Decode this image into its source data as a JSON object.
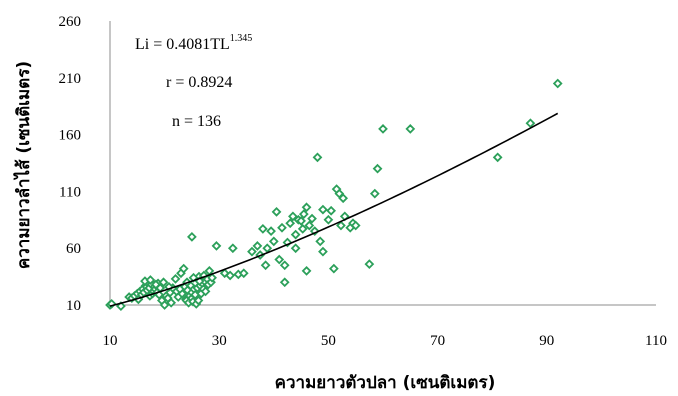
{
  "chart_data": {
    "type": "scatter",
    "title": "",
    "xlabel": "ความยาวตัวปลา (เซนติเมตร)",
    "ylabel": "ความยาวลำไส้ (เซนติเมตร)",
    "xlim": [
      10,
      110
    ],
    "ylim": [
      10,
      260
    ],
    "x_ticks": [
      10,
      30,
      50,
      70,
      90,
      110
    ],
    "y_ticks": [
      10,
      60,
      110,
      160,
      210,
      260
    ],
    "x_tick_labels": [
      "10",
      "30",
      "50",
      "70",
      "90",
      "110"
    ],
    "y_tick_labels": [
      "10",
      "60",
      "110",
      "160",
      "210",
      "260"
    ],
    "grid": false,
    "marker_color": "#2ca05a",
    "trendline_color": "#000000",
    "annotations": {
      "equation_main": "Li = 0.4081TL",
      "equation_exponent": "1.345",
      "r_text": "r = 0.8924",
      "n_text": "n = 136"
    },
    "trendline": {
      "type": "power",
      "a": 0.4081,
      "b": 1.345,
      "x_range": [
        10,
        92
      ]
    },
    "series": [
      {
        "points": [
          [
            10,
            10
          ],
          [
            10.3,
            11
          ],
          [
            12,
            9
          ],
          [
            13.5,
            17
          ],
          [
            14,
            16
          ],
          [
            14.5,
            18
          ],
          [
            15,
            20
          ],
          [
            15.2,
            15
          ],
          [
            15.5,
            22
          ],
          [
            15.8,
            19
          ],
          [
            16,
            24
          ],
          [
            16.2,
            21
          ],
          [
            16.5,
            27
          ],
          [
            16.7,
            26
          ],
          [
            16.8,
            23
          ],
          [
            17,
            29
          ],
          [
            17.2,
            25
          ],
          [
            17.3,
            18
          ],
          [
            17.5,
            30
          ],
          [
            17.6,
            28
          ],
          [
            17.8,
            20
          ],
          [
            18,
            22
          ],
          [
            18.1,
            26
          ],
          [
            18.3,
            24
          ],
          [
            18.5,
            27
          ],
          [
            18.6,
            21
          ],
          [
            18.8,
            29
          ],
          [
            19,
            19
          ],
          [
            19.2,
            25
          ],
          [
            19.5,
            14
          ],
          [
            19.8,
            30
          ],
          [
            20,
            10
          ],
          [
            20.3,
            18
          ],
          [
            20.6,
            16
          ],
          [
            21,
            21
          ],
          [
            21.2,
            12
          ],
          [
            21.5,
            25
          ],
          [
            22,
            33
          ],
          [
            22.2,
            22
          ],
          [
            22.5,
            17
          ],
          [
            23,
            38
          ],
          [
            23.2,
            20
          ],
          [
            23.5,
            42
          ],
          [
            23.7,
            26
          ],
          [
            23.9,
            15
          ],
          [
            24,
            14
          ],
          [
            24.2,
            23
          ],
          [
            24.4,
            12
          ],
          [
            24.6,
            18
          ],
          [
            24.8,
            27
          ],
          [
            25,
            16
          ],
          [
            25,
            21
          ],
          [
            25.2,
            13
          ],
          [
            25.4,
            24
          ],
          [
            25.6,
            19
          ],
          [
            25.8,
            11
          ],
          [
            26,
            25
          ],
          [
            26.2,
            14
          ],
          [
            26.3,
            35
          ],
          [
            26.5,
            27
          ],
          [
            26.7,
            20
          ],
          [
            26.9,
            29
          ],
          [
            27.1,
            24
          ],
          [
            27.3,
            31
          ],
          [
            27.5,
            22
          ],
          [
            27.8,
            33
          ],
          [
            28,
            28
          ],
          [
            28.2,
            40
          ],
          [
            28.5,
            30
          ],
          [
            25,
            70
          ],
          [
            29.5,
            62
          ],
          [
            31,
            38
          ],
          [
            32,
            36
          ],
          [
            32.5,
            60
          ],
          [
            33.5,
            37
          ],
          [
            34.5,
            38
          ],
          [
            37,
            62
          ],
          [
            37.5,
            54
          ],
          [
            38,
            77
          ],
          [
            38.5,
            45
          ],
          [
            38.8,
            60
          ],
          [
            39.5,
            75
          ],
          [
            40,
            66
          ],
          [
            40.5,
            92
          ],
          [
            41,
            50
          ],
          [
            41.5,
            78
          ],
          [
            42,
            45
          ],
          [
            42,
            30
          ],
          [
            42.5,
            65
          ],
          [
            43,
            82
          ],
          [
            43.5,
            88
          ],
          [
            44,
            72
          ],
          [
            44.5,
            85
          ],
          [
            45,
            84
          ],
          [
            45.3,
            77
          ],
          [
            45.5,
            90
          ],
          [
            46,
            96
          ],
          [
            46,
            40
          ],
          [
            46.5,
            80
          ],
          [
            47,
            86
          ],
          [
            47.5,
            75
          ],
          [
            48,
            140
          ],
          [
            48.5,
            66
          ],
          [
            49,
            94
          ],
          [
            49,
            57
          ],
          [
            50,
            85
          ],
          [
            51,
            42
          ],
          [
            51.5,
            112
          ],
          [
            52,
            108
          ],
          [
            52.3,
            80
          ],
          [
            52.7,
            104
          ],
          [
            53,
            88
          ],
          [
            54,
            78
          ],
          [
            54.5,
            82
          ],
          [
            55,
            80
          ],
          [
            57.5,
            46
          ],
          [
            58.5,
            108
          ],
          [
            59,
            130
          ],
          [
            60,
            165
          ],
          [
            65,
            165
          ],
          [
            81,
            140
          ],
          [
            87,
            170
          ],
          [
            92,
            205
          ],
          [
            16.4,
            31
          ],
          [
            17.4,
            32
          ],
          [
            18.4,
            28
          ],
          [
            20.8,
            26
          ],
          [
            22.8,
            24
          ],
          [
            24.1,
            30
          ],
          [
            25.3,
            34
          ],
          [
            26.4,
            31
          ],
          [
            27.2,
            36
          ],
          [
            28.7,
            34
          ],
          [
            36,
            57
          ],
          [
            44,
            60
          ],
          [
            50.5,
            93
          ]
        ]
      }
    ]
  }
}
